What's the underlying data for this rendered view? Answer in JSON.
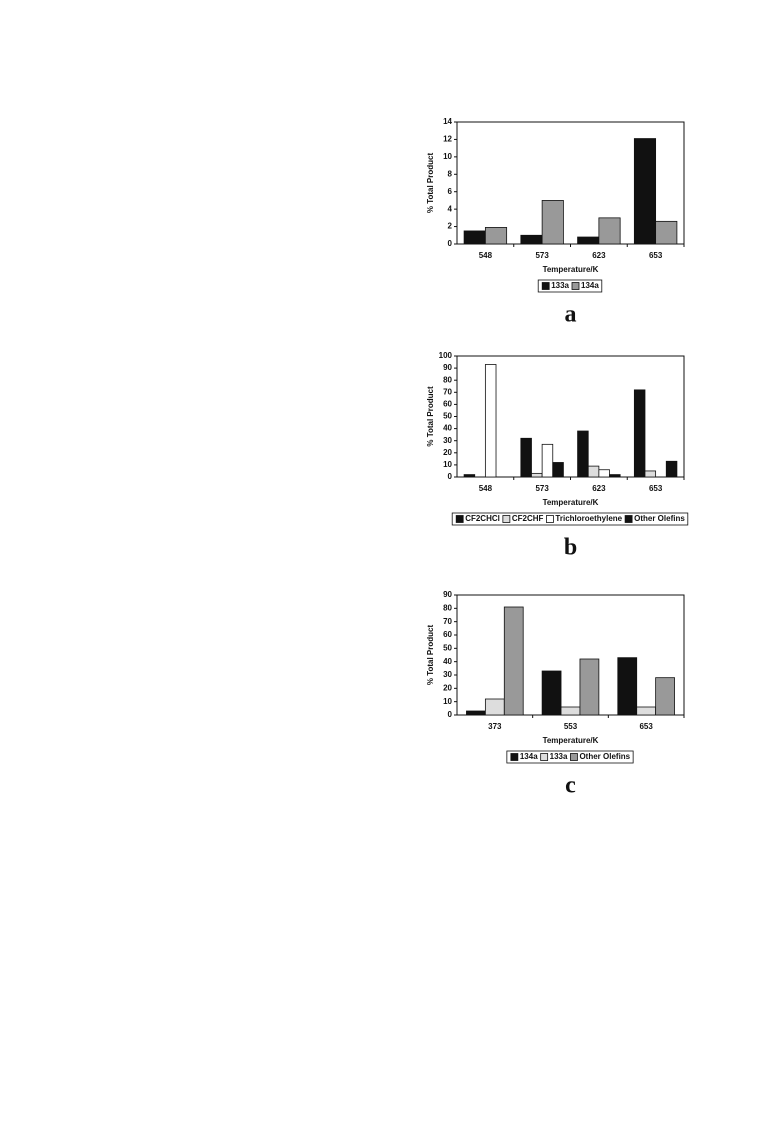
{
  "chart_data": [
    {
      "type": "bar",
      "panel": "a",
      "ylabel": "% Total Product",
      "xlabel": "Temperature/K",
      "categories": [
        "548",
        "573",
        "623",
        "653"
      ],
      "series": [
        {
          "name": "133a",
          "color": "#111111",
          "values": [
            1.5,
            1.0,
            0.8,
            12.1
          ]
        },
        {
          "name": "134a",
          "color": "#999999",
          "values": [
            1.9,
            5.0,
            3.0,
            2.6
          ]
        }
      ],
      "ylim": [
        0,
        14
      ],
      "yticks": [
        0,
        2,
        4,
        6,
        8,
        10,
        12,
        14
      ]
    },
    {
      "type": "bar",
      "panel": "b",
      "ylabel": "% Total Product",
      "xlabel": "Temperature/K",
      "categories": [
        "548",
        "573",
        "623",
        "653"
      ],
      "series": [
        {
          "name": "CF2CHCl",
          "color": "#111111",
          "values": [
            2,
            32,
            38,
            72
          ]
        },
        {
          "name": "CF2CHF",
          "color": "#dddddd",
          "values": [
            0,
            3,
            9,
            5
          ]
        },
        {
          "name": "Trichloroethylene",
          "color": "#ffffff",
          "values": [
            93,
            27,
            6,
            0
          ]
        },
        {
          "name": "Other Olefins",
          "color": "#111111",
          "values": [
            0,
            12,
            2,
            13
          ]
        }
      ],
      "ylim": [
        0,
        100
      ],
      "yticks": [
        0,
        10,
        20,
        30,
        40,
        50,
        60,
        70,
        80,
        90,
        100
      ]
    },
    {
      "type": "bar",
      "panel": "c",
      "ylabel": "% Total Product",
      "xlabel": "Temperature/K",
      "categories": [
        "373",
        "553",
        "653"
      ],
      "series": [
        {
          "name": "134a",
          "color": "#111111",
          "values": [
            3,
            33,
            43
          ]
        },
        {
          "name": "133a",
          "color": "#dddddd",
          "values": [
            12,
            6,
            6
          ]
        },
        {
          "name": "Other Olefins",
          "color": "#999999",
          "values": [
            81,
            42,
            28
          ]
        }
      ],
      "ylim": [
        0,
        90
      ],
      "yticks": [
        0,
        10,
        20,
        30,
        40,
        50,
        60,
        70,
        80,
        90
      ]
    }
  ]
}
